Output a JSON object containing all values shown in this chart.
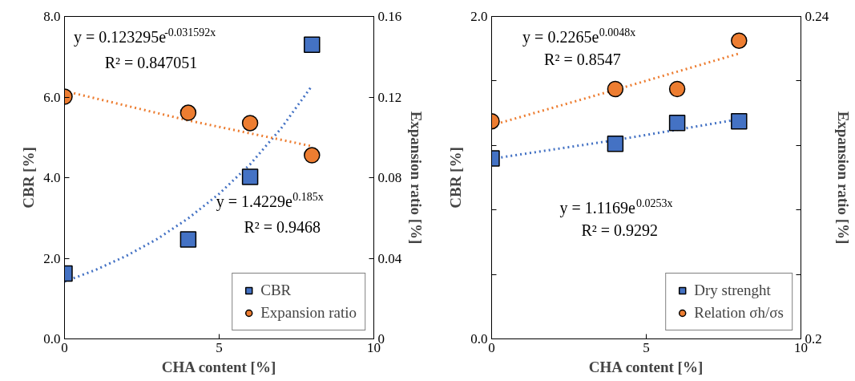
{
  "chart_data": [
    {
      "type": "scatter",
      "xlabel": "CHA content [%]",
      "ylabel": "CBR [%]",
      "y2label": "Expansion ratio [%]",
      "xlim": [
        0,
        10
      ],
      "xticks": [
        0,
        5,
        10
      ],
      "ylim": [
        0,
        8
      ],
      "yticks": [
        {
          "value": 0,
          "label": "0.0"
        },
        {
          "value": 2,
          "label": "2.0"
        },
        {
          "value": 4,
          "label": "4.0"
        },
        {
          "value": 6,
          "label": "6.0"
        },
        {
          "value": 8,
          "label": "8.0"
        }
      ],
      "y2lim": [
        0,
        0.16
      ],
      "y2ticks": [
        0,
        0.04,
        0.08,
        0.12,
        0.16
      ],
      "legend": "bottom right",
      "series": [
        {
          "name": "CBR",
          "marker": "square",
          "color": "#4472c4",
          "x": [
            0,
            4,
            6,
            8
          ],
          "values": [
            1.62,
            2.47,
            4.02,
            7.3
          ]
        },
        {
          "name": "Expansion ratio",
          "marker": "circle",
          "color": "#ed7d31",
          "axis": "y2",
          "x": [
            0,
            4,
            6,
            8
          ],
          "values": [
            0.1202,
            0.1122,
            0.1071,
            0.0911
          ]
        },
        {
          "type": "line",
          "line_style": "dotted",
          "color": "#4472c4",
          "x": [
            0,
            1,
            2,
            3,
            4,
            5,
            6,
            7,
            8
          ],
          "values": [
            1.42,
            1.71,
            2.06,
            2.48,
            2.99,
            3.6,
            4.33,
            5.22,
            6.28
          ]
        },
        {
          "type": "line",
          "line_style": "dotted",
          "color": "#ed7d31",
          "axis": "y2",
          "x": [
            0,
            4,
            8
          ],
          "values": [
            0.123,
            0.1084,
            0.0956
          ]
        }
      ],
      "annotations": [
        "y = 0.123295e$^{-0.031592x}$",
        "R² = 0.847051",
        "y = 1.4229e$^{0.185x}$",
        "R² = 0.9468"
      ]
    },
    {
      "type": "scatter",
      "xlabel": "CHA content [%]",
      "ylabel": "CBR [%]",
      "y2label": "Expansion ratio [%]",
      "xlim": [
        0,
        10
      ],
      "xticks": [
        0,
        5,
        10
      ],
      "ylim": [
        0,
        2
      ],
      "yticks": [
        {
          "value": 0,
          "label": "0.0"
        },
        {
          "value": 0.4,
          "label": null
        },
        {
          "value": 0.8,
          "label": null
        },
        {
          "value": 1.2,
          "label": null
        },
        {
          "value": 1.6,
          "label": null
        },
        {
          "value": 2,
          "label": "2.0"
        }
      ],
      "y2lim": [
        0.2,
        0.24
      ],
      "y2ticks": [
        0.2,
        {
          "value": 0.208,
          "label": null
        },
        {
          "value": 0.216,
          "label": null
        },
        {
          "value": 0.224,
          "label": null
        },
        {
          "value": 0.232,
          "label": null
        },
        0.24
      ],
      "legend": "bottom right",
      "series": [
        {
          "name": "Dry strenght",
          "marker": "square",
          "color": "#4472c4",
          "x": [
            0,
            4,
            6,
            8
          ],
          "values": [
            1.12,
            1.21,
            1.34,
            1.35
          ]
        },
        {
          "name": "Relation σh/σs",
          "marker": "circle",
          "color": "#ed7d31",
          "axis": "y2",
          "x": [
            0,
            4,
            6,
            8
          ],
          "values": [
            0.227,
            0.231,
            0.231,
            0.237
          ]
        },
        {
          "type": "line",
          "line_style": "dotted",
          "color": "#4472c4",
          "x": [
            0,
            4,
            8
          ],
          "values": [
            1.117,
            1.233,
            1.362
          ]
        },
        {
          "type": "line",
          "line_style": "dotted",
          "color": "#ed7d31",
          "axis": "y2",
          "x": [
            0,
            4,
            8
          ],
          "values": [
            0.2265,
            0.2309,
            0.2354
          ]
        }
      ],
      "annotations": [
        "y = 0.2265e$^{0.0048x}$",
        "R² = 0.8547",
        "y = 1.1169e$^{0.0253x}$",
        "R² = 0.9292"
      ]
    }
  ]
}
